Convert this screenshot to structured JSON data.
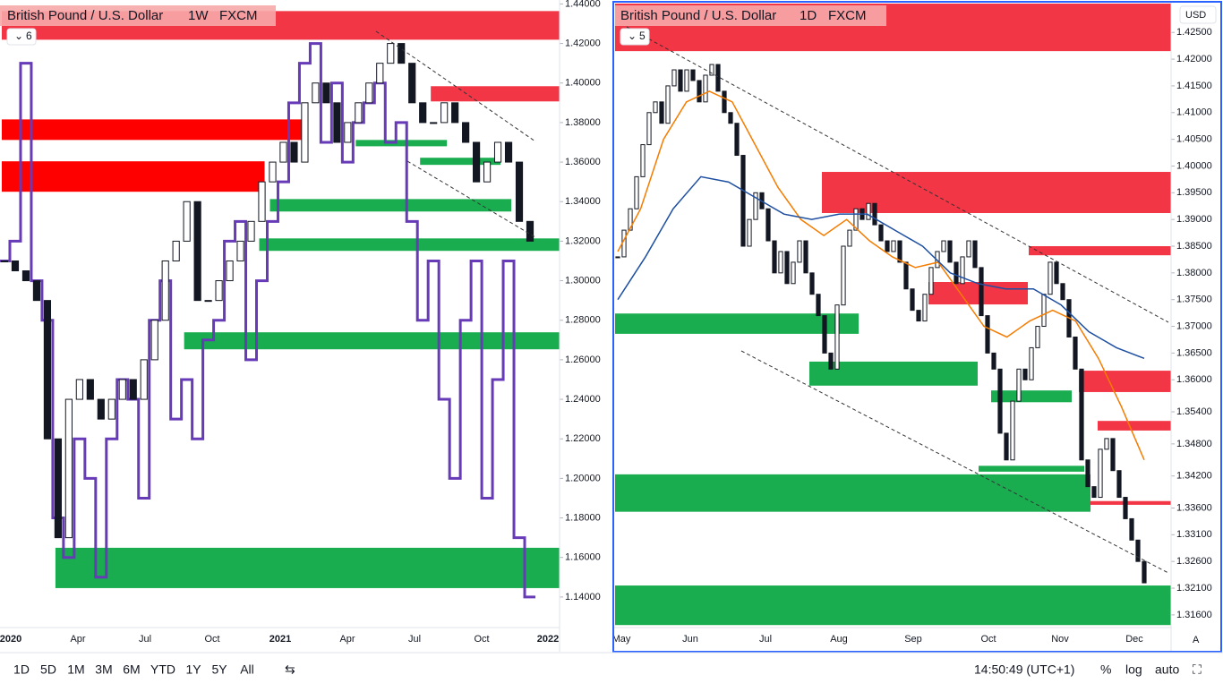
{
  "left_chart": {
    "type": "candlestick",
    "title": "British Pound / U.S. Dollar",
    "interval": "1W",
    "source": "FXCM",
    "indicator_count": "6",
    "x_labels": [
      "2020",
      "Apr",
      "Jul",
      "Oct",
      "2021",
      "Apr",
      "Jul",
      "Oct",
      "2022"
    ],
    "ylim": [
      1.125,
      1.442
    ],
    "yticks": [
      {
        "value": 1.14,
        "label": "1.14000"
      },
      {
        "value": 1.16,
        "label": "1.16000"
      },
      {
        "value": 1.18,
        "label": "1.18000"
      },
      {
        "value": 1.2,
        "label": "1.20000"
      },
      {
        "value": 1.22,
        "label": "1.22000"
      },
      {
        "value": 1.24,
        "label": "1.24000"
      },
      {
        "value": 1.26,
        "label": "1.26000"
      },
      {
        "value": 1.28,
        "label": "1.28000"
      },
      {
        "value": 1.3,
        "label": "1.30000"
      },
      {
        "value": 1.32,
        "label": "1.32000"
      },
      {
        "value": 1.34,
        "label": "1.34000"
      },
      {
        "value": 1.36,
        "label": "1.36000"
      },
      {
        "value": 1.38,
        "label": "1.38000"
      },
      {
        "value": 1.4,
        "label": "1.40000"
      },
      {
        "value": 1.42,
        "label": "1.42000"
      },
      {
        "value": 1.44,
        "label": "1.44000"
      }
    ],
    "closes": [
      1.31,
      1.305,
      1.3,
      1.29,
      1.22,
      1.17,
      1.24,
      1.25,
      1.24,
      1.23,
      1.24,
      1.25,
      1.24,
      1.26,
      1.28,
      1.31,
      1.32,
      1.34,
      1.29,
      1.29,
      1.3,
      1.31,
      1.32,
      1.33,
      1.35,
      1.36,
      1.37,
      1.36,
      1.39,
      1.4,
      1.39,
      1.37,
      1.38,
      1.39,
      1.4,
      1.41,
      1.42,
      1.41,
      1.39,
      1.38,
      1.38,
      1.39,
      1.38,
      1.37,
      1.35,
      1.36,
      1.37,
      1.36,
      1.33,
      1.32
    ],
    "line": {
      "color": "#673ab7",
      "values": [
        1.31,
        1.32,
        1.41,
        1.3,
        1.28,
        1.18,
        1.16,
        1.22,
        1.2,
        1.15,
        1.22,
        1.25,
        1.24,
        1.19,
        1.28,
        1.3,
        1.23,
        1.25,
        1.22,
        1.27,
        1.28,
        1.32,
        1.33,
        1.26,
        1.3,
        1.33,
        1.35,
        1.39,
        1.41,
        1.42,
        1.37,
        1.4,
        1.36,
        1.38,
        1.39,
        1.4,
        1.37,
        1.38,
        1.33,
        1.28,
        1.31,
        1.24,
        1.2,
        1.28,
        1.31,
        1.19,
        1.25,
        1.31,
        1.17,
        1.14
      ]
    },
    "zones": [
      {
        "top": 1.4364,
        "bottom": 1.4219,
        "start": 0,
        "end": null,
        "color": "#f23645"
      },
      {
        "top": 1.3984,
        "bottom": 1.3907,
        "start": 40,
        "end": null,
        "color": "#f23645"
      },
      {
        "top": 1.3816,
        "bottom": 1.3712,
        "start": 0,
        "end": 28,
        "color": "#ff0000"
      },
      {
        "top": 1.3604,
        "bottom": 1.345,
        "start": 0,
        "end": 24,
        "color": "#ff0000"
      },
      {
        "top": 1.3712,
        "bottom": 1.368,
        "start": 33,
        "end": 41,
        "color": "#1aad50"
      },
      {
        "top": 1.3622,
        "bottom": 1.3586,
        "start": 39,
        "end": 46,
        "color": "#1aad50"
      },
      {
        "top": 1.3413,
        "bottom": 1.335,
        "start": 25,
        "end": 47,
        "color": "#1aad50"
      },
      {
        "top": 1.3214,
        "bottom": 1.3151,
        "start": 24,
        "end": null,
        "color": "#1aad50"
      },
      {
        "top": 1.2739,
        "bottom": 1.2653,
        "start": 17,
        "end": null,
        "color": "#1aad50"
      },
      {
        "top": 1.1649,
        "bottom": 1.1445,
        "start": 5,
        "end": null,
        "color": "#1aad50"
      }
    ]
  },
  "right_chart": {
    "type": "candlestick",
    "title": "British Pound / U.S. Dollar",
    "interval": "1D",
    "source": "FXCM",
    "indicator_count": "5",
    "x_labels": [
      "May",
      "Jun",
      "Jul",
      "Aug",
      "Sep",
      "Oct",
      "Nov",
      "Dec"
    ],
    "ylim": [
      1.3138,
      1.4304
    ],
    "yticks": [
      {
        "value": 1.425,
        "label": "1.42500"
      },
      {
        "value": 1.42,
        "label": "1.42000"
      },
      {
        "value": 1.415,
        "label": "1.41500"
      },
      {
        "value": 1.41,
        "label": "1.41000"
      },
      {
        "value": 1.405,
        "label": "1.40500"
      },
      {
        "value": 1.4,
        "label": "1.40000"
      },
      {
        "value": 1.395,
        "label": "1.39500"
      },
      {
        "value": 1.39,
        "label": "1.39000"
      },
      {
        "value": 1.385,
        "label": "1.38500"
      },
      {
        "value": 1.38,
        "label": "1.38000"
      },
      {
        "value": 1.375,
        "label": "1.37500"
      },
      {
        "value": 1.37,
        "label": "1.37000"
      },
      {
        "value": 1.365,
        "label": "1.36500"
      },
      {
        "value": 1.36,
        "label": "1.36000"
      },
      {
        "value": 1.354,
        "label": "1.35400"
      },
      {
        "value": 1.348,
        "label": "1.34800"
      },
      {
        "value": 1.342,
        "label": "1.34200"
      },
      {
        "value": 1.336,
        "label": "1.33600"
      },
      {
        "value": 1.331,
        "label": "1.33100"
      },
      {
        "value": 1.326,
        "label": "1.32600"
      },
      {
        "value": 1.321,
        "label": "1.32100"
      },
      {
        "value": 1.316,
        "label": "1.31600"
      }
    ],
    "closes": [
      1.383,
      1.388,
      1.392,
      1.398,
      1.404,
      1.41,
      1.412,
      1.408,
      1.415,
      1.418,
      1.414,
      1.418,
      1.416,
      1.412,
      1.417,
      1.419,
      1.414,
      1.41,
      1.408,
      1.402,
      1.385,
      1.39,
      1.395,
      1.392,
      1.386,
      1.38,
      1.384,
      1.378,
      1.382,
      1.386,
      1.38,
      1.376,
      1.372,
      1.365,
      1.362,
      1.374,
      1.385,
      1.388,
      1.392,
      1.39,
      1.393,
      1.389,
      1.386,
      1.384,
      1.386,
      1.382,
      1.377,
      1.373,
      1.371,
      1.376,
      1.381,
      1.384,
      1.386,
      1.382,
      1.378,
      1.383,
      1.386,
      1.381,
      1.372,
      1.365,
      1.362,
      1.35,
      1.345,
      1.356,
      1.362,
      1.36,
      1.366,
      1.37,
      1.376,
      1.382,
      1.378,
      1.375,
      1.368,
      1.362,
      1.345,
      1.34,
      1.338,
      1.347,
      1.349,
      1.343,
      1.338,
      1.334,
      1.33,
      1.326,
      1.322
    ],
    "ma": [
      {
        "color": "#f57c00",
        "values": [
          1.384,
          1.392,
          1.405,
          1.412,
          1.414,
          1.412,
          1.404,
          1.396,
          1.39,
          1.387,
          1.39,
          1.386,
          1.383,
          1.381,
          1.382,
          1.376,
          1.37,
          1.368,
          1.371,
          1.373,
          1.371,
          1.364,
          1.355,
          1.345
        ]
      },
      {
        "color": "#1e4fa0",
        "values": [
          1.375,
          1.383,
          1.392,
          1.398,
          1.397,
          1.394,
          1.391,
          1.39,
          1.391,
          1.391,
          1.388,
          1.385,
          1.38,
          1.378,
          1.377,
          1.377,
          1.374,
          1.369,
          1.366,
          1.364
        ]
      }
    ],
    "zones": [
      {
        "top": 1.4304,
        "bottom": 1.4215,
        "start": 0,
        "end": null,
        "color": "#f23645"
      },
      {
        "top": 1.3989,
        "bottom": 1.3912,
        "start": 33,
        "end": null,
        "color": "#f23645"
      },
      {
        "top": 1.385,
        "bottom": 1.3833,
        "start": 66,
        "end": null,
        "color": "#f23645"
      },
      {
        "top": 1.3783,
        "bottom": 1.3741,
        "start": 50,
        "end": 65,
        "color": "#f23645"
      },
      {
        "top": 1.3617,
        "bottom": 1.3577,
        "start": 74,
        "end": null,
        "color": "#f23645"
      },
      {
        "top": 1.3523,
        "bottom": 1.3505,
        "start": 77,
        "end": null,
        "color": "#f23645"
      },
      {
        "top": 1.3373,
        "bottom": 1.3366,
        "start": 75,
        "end": null,
        "color": "#f23645"
      },
      {
        "top": 1.3724,
        "bottom": 1.3686,
        "start": 0,
        "end": 38,
        "color": "#1aad50"
      },
      {
        "top": 1.3634,
        "bottom": 1.3589,
        "start": 31,
        "end": 57,
        "color": "#1aad50"
      },
      {
        "top": 1.358,
        "bottom": 1.3558,
        "start": 60,
        "end": 72,
        "color": "#1aad50"
      },
      {
        "top": 1.3439,
        "bottom": 1.3428,
        "start": 58,
        "end": 74,
        "color": "#1aad50"
      },
      {
        "top": 1.3423,
        "bottom": 1.3353,
        "start": 0,
        "end": 75,
        "color": "#1aad50"
      },
      {
        "top": 1.3215,
        "bottom": 1.3141,
        "start": 0,
        "end": null,
        "color": "#1aad50"
      }
    ]
  },
  "currency": "USD",
  "auto_scale": "A",
  "toolbar": {
    "ranges": [
      "1D",
      "5D",
      "1M",
      "3M",
      "6M",
      "YTD",
      "1Y",
      "5Y",
      "All"
    ],
    "clock": "14:50:49 (UTC+1)",
    "percent": "%",
    "log": "log",
    "auto": "auto"
  }
}
